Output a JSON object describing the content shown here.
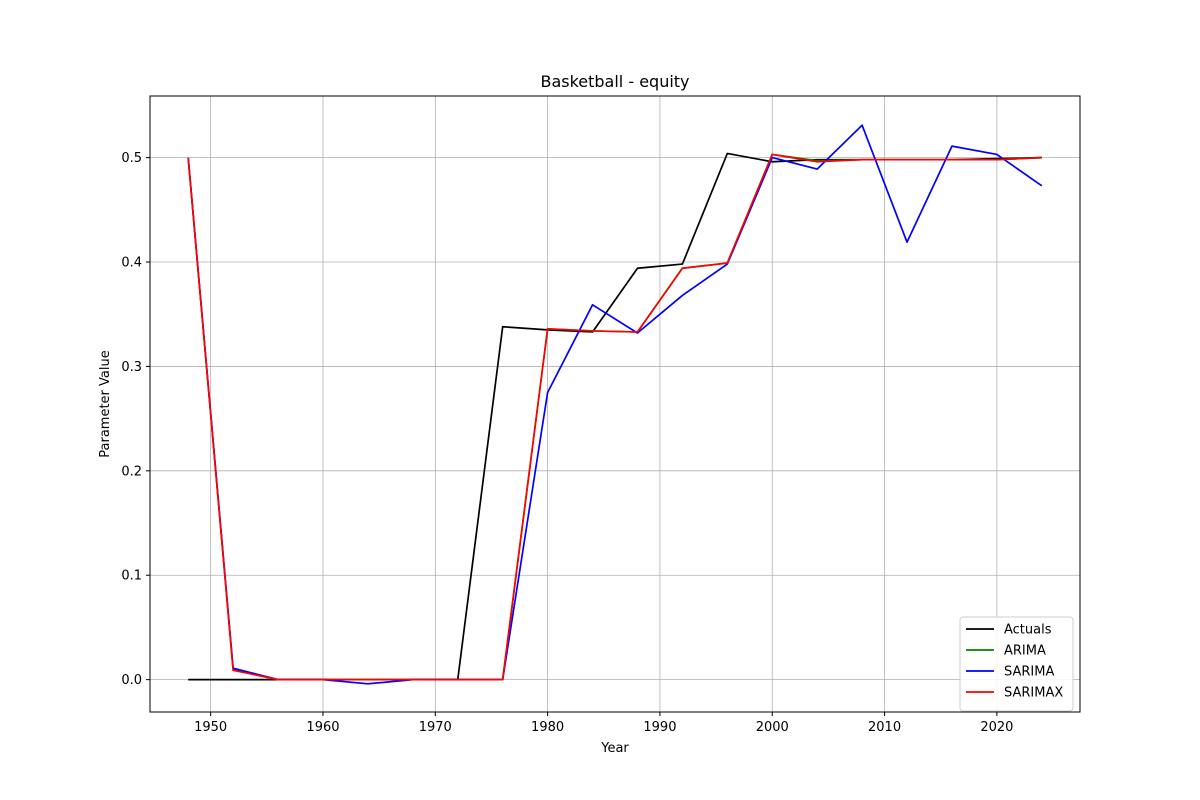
{
  "chart_data": {
    "type": "line",
    "title": "Basketball - equity",
    "xlabel": "Year",
    "ylabel": "Parameter Value",
    "xlim": [
      1944.6,
      2027.4
    ],
    "ylim": [
      -0.031,
      0.559
    ],
    "xticks": [
      1950,
      1960,
      1970,
      1980,
      1990,
      2000,
      2010,
      2020
    ],
    "yticks": [
      0.0,
      0.1,
      0.2,
      0.3,
      0.4,
      0.5
    ],
    "ytick_labels": [
      "0.0",
      "0.1",
      "0.2",
      "0.3",
      "0.4",
      "0.5"
    ],
    "grid": true,
    "legend_position": "lower-right",
    "x": [
      1948,
      1952,
      1956,
      1960,
      1964,
      1968,
      1972,
      1976,
      1980,
      1984,
      1988,
      1992,
      1996,
      2000,
      2004,
      2008,
      2012,
      2016,
      2020,
      2024
    ],
    "series": [
      {
        "name": "Actuals",
        "color": "#000000",
        "values": [
          0.0,
          0.0,
          0.0,
          0.0,
          0.0,
          0.0,
          0.0,
          0.338,
          0.335,
          0.333,
          0.394,
          0.398,
          0.504,
          0.496,
          0.498,
          0.498,
          0.498,
          0.498,
          0.499,
          0.5
        ]
      },
      {
        "name": "ARIMA",
        "color": "#008000",
        "values": [
          0.5,
          0.01,
          0.0,
          0.0,
          0.0,
          0.0,
          0.0,
          0.0,
          0.336,
          0.334,
          0.333,
          0.394,
          0.399,
          0.503,
          0.497,
          0.498,
          0.498,
          0.498,
          0.498,
          0.5
        ]
      },
      {
        "name": "SARIMA",
        "color": "#0000ff",
        "values": [
          0.5,
          0.011,
          0.0,
          0.0,
          -0.004,
          0.0,
          0.0,
          0.0,
          0.275,
          0.359,
          0.332,
          0.368,
          0.398,
          0.5,
          0.489,
          0.531,
          0.419,
          0.511,
          0.503,
          0.473
        ]
      },
      {
        "name": "SARIMAX",
        "color": "#ff0000",
        "values": [
          0.5,
          0.009,
          0.0,
          0.0,
          0.0,
          0.0,
          0.0,
          0.0,
          0.336,
          0.334,
          0.333,
          0.394,
          0.399,
          0.503,
          0.496,
          0.498,
          0.498,
          0.498,
          0.498,
          0.5
        ]
      }
    ]
  }
}
